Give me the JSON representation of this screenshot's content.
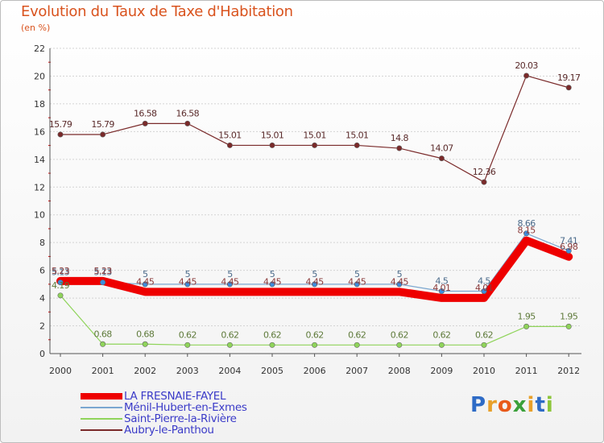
{
  "chart_data": {
    "type": "line",
    "title": "Evolution du Taux de Taxe d'Habitation",
    "subtitle": "(en %)",
    "x": [
      "2000",
      "2001",
      "2002",
      "2003",
      "2004",
      "2005",
      "2006",
      "2007",
      "2008",
      "2009",
      "2010",
      "2011",
      "2012"
    ],
    "ylim": [
      0,
      22
    ],
    "yticks": [
      "0",
      "2",
      "4",
      "6",
      "8",
      "10",
      "12",
      "14",
      "16",
      "18",
      "20",
      "22"
    ],
    "series": [
      {
        "name": "Aubry-le-Panthou",
        "color": "#7a2a2a",
        "values": [
          15.79,
          15.79,
          16.58,
          16.58,
          15.01,
          15.01,
          15.01,
          15.01,
          14.8,
          14.07,
          12.36,
          20.03,
          19.17
        ],
        "labels": [
          "15.79",
          "15.79",
          "16.58",
          "16.58",
          "15.01",
          "15.01",
          "15.01",
          "15.01",
          "14.8",
          "14.07",
          "12.36",
          "20.03",
          "19.17"
        ]
      },
      {
        "name": "Saint-Pierre-la-Rivière",
        "color": "#8fd45a",
        "values": [
          4.19,
          0.68,
          0.68,
          0.62,
          0.62,
          0.62,
          0.62,
          0.62,
          0.62,
          0.62,
          0.62,
          1.95,
          1.95
        ],
        "labels": [
          "4.19",
          "0.68",
          "0.68",
          "0.62",
          "0.62",
          "0.62",
          "0.62",
          "0.62",
          "0.62",
          "0.62",
          "0.62",
          "1.95",
          "1.95"
        ]
      },
      {
        "name": "Ménil-Hubert-en-Exmes",
        "color": "#7ba7d0",
        "values": [
          5.13,
          5.13,
          5,
          5,
          5,
          5,
          5,
          5,
          5,
          4.5,
          4.5,
          8.66,
          7.41
        ],
        "labels": [
          "5.13",
          "5.13",
          "5",
          "5",
          "5",
          "5",
          "5",
          "5",
          "5",
          "4.5",
          "4.5",
          "8.66",
          "7.41"
        ]
      },
      {
        "name": "LA FRESNAIE-FAYEL",
        "color": "#ee0000",
        "values": [
          5.23,
          5.23,
          4.45,
          4.45,
          4.45,
          4.45,
          4.45,
          4.45,
          4.45,
          4.01,
          4.01,
          8.15,
          6.98
        ],
        "labels": [
          "5.23",
          "5.23",
          "4.45",
          "4.45",
          "4.45",
          "4.45",
          "4.45",
          "4.45",
          "4.45",
          "4.01",
          "4.01",
          "8.15",
          "6.98"
        ]
      }
    ],
    "legend": {
      "position": "bottom-left",
      "entries": [
        "LA FRESNAIE-FAYEL",
        "Ménil-Hubert-en-Exmes",
        "Saint-Pierre-la-Rivière",
        "Aubry-le-Panthou"
      ]
    }
  },
  "logo": {
    "letters": [
      "P",
      "r",
      "o",
      "x",
      "i",
      "t",
      "i"
    ],
    "colors": [
      "#2e6bc6",
      "#e8a02a",
      "#e85a1a",
      "#3aa03a",
      "#e8a02a",
      "#2e6bc6",
      "#8cc63a"
    ]
  }
}
